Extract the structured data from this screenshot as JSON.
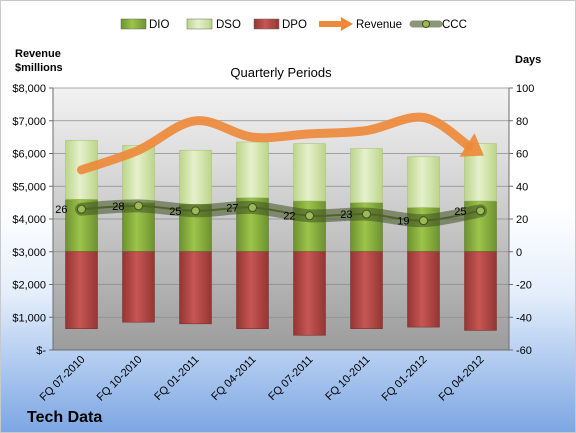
{
  "chart_data": {
    "type": "bar",
    "subtype": "stacked-bar-with-lines",
    "title": "Quarterly Periods",
    "company": "Tech Data",
    "left_axis_label_line1": "Revenue",
    "left_axis_label_line2": "$millions",
    "right_axis_label": "Days",
    "categories": [
      "FQ 07-2010",
      "FQ 10-2010",
      "FQ 01-2011",
      "FQ 04-2011",
      "FQ 07-2011",
      "FQ 10-2011",
      "FQ 01-2012",
      "FQ 04-2012"
    ],
    "left_ylim": [
      0,
      8000
    ],
    "left_ticks": [
      "$-",
      "$1,000",
      "$2,000",
      "$3,000",
      "$4,000",
      "$5,000",
      "$6,000",
      "$7,000",
      "$8,000"
    ],
    "right_ylim": [
      -60,
      100
    ],
    "right_ticks": [
      "-60",
      "-40",
      "-20",
      "0",
      "20",
      "40",
      "60",
      "80",
      "100"
    ],
    "legend_position": "top",
    "grid": true,
    "series": [
      {
        "name": "DIO",
        "axis": "right",
        "kind": "stacked-bar",
        "color": "#8db83f",
        "values": [
          32,
          30,
          29,
          33,
          31,
          30,
          27,
          31
        ]
      },
      {
        "name": "DSO",
        "axis": "right",
        "kind": "stacked-bar",
        "color": "#d7e8b0",
        "values": [
          36,
          35,
          33,
          34,
          35,
          33,
          31,
          35
        ]
      },
      {
        "name": "DPO",
        "axis": "right",
        "kind": "stacked-bar",
        "color": "#b94a48",
        "values": [
          -47,
          -43,
          -44,
          -47,
          -51,
          -47,
          -46,
          -48
        ]
      },
      {
        "name": "Revenue",
        "axis": "left",
        "kind": "arrow-line",
        "color": "#ed8a3a",
        "values": [
          5500,
          6100,
          7000,
          6500,
          6600,
          6700,
          7100,
          6000
        ]
      },
      {
        "name": "CCC",
        "axis": "right",
        "kind": "line",
        "color": "#4f6228",
        "values": [
          26,
          28,
          25,
          27,
          22,
          23,
          19,
          25
        ]
      }
    ],
    "ccc_labels": [
      "26",
      "28",
      "25",
      "27",
      "22",
      "23",
      "19",
      "25"
    ]
  }
}
